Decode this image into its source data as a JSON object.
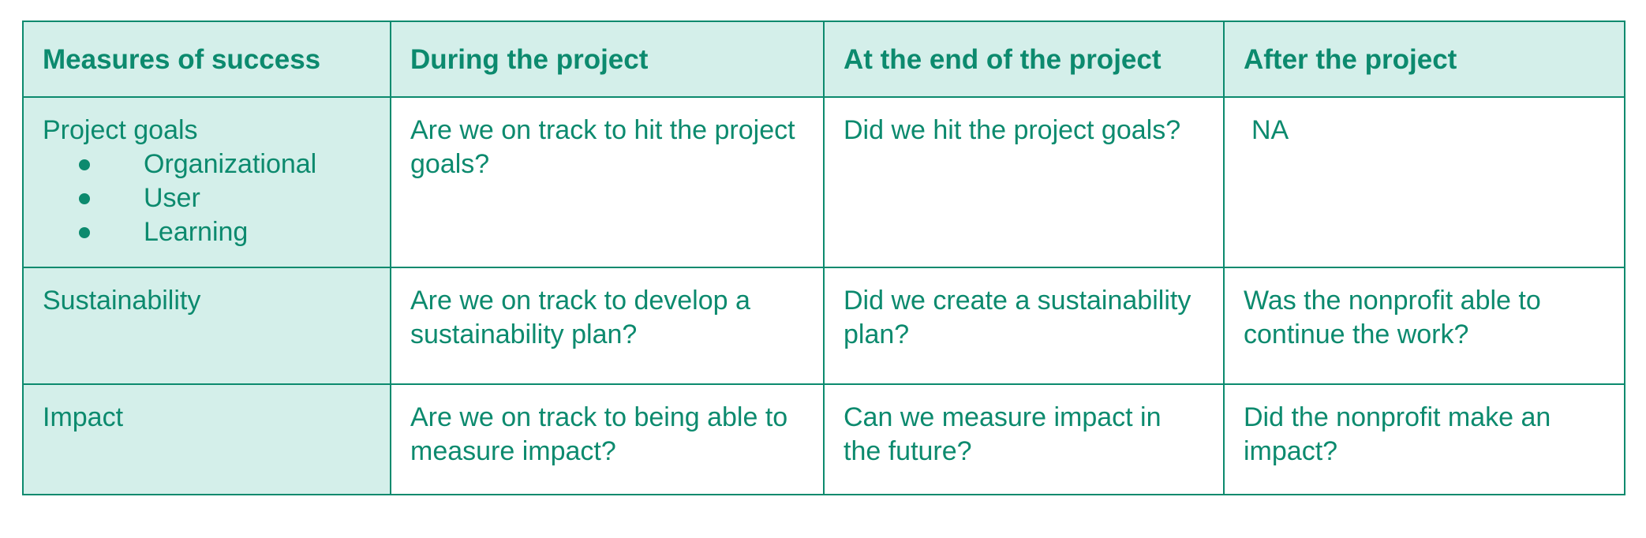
{
  "table": {
    "headers": [
      "Measures of success",
      "During the project",
      "At the end of the project",
      "After the project"
    ],
    "rows": [
      {
        "label": "Project goals",
        "sub_items": [
          "Organizational",
          "User",
          "Learning"
        ],
        "during": "Are we on track to hit the project goals?",
        "end": "Did we hit the project goals?",
        "after": "NA"
      },
      {
        "label": "Sustainability",
        "during": "Are we on track to develop a sustainability plan?",
        "end": "Did we create a sustainability plan?",
        "after": "Was the nonprofit able to continue the work?"
      },
      {
        "label": "Impact",
        "during": "Are we on track to being able to measure impact?",
        "end": "Can we measure impact in the future?",
        "after": "Did the nonprofit make an impact?"
      }
    ]
  },
  "colors": {
    "text": "#0c8a6e",
    "border": "#0c8a6e",
    "header_bg": "#d4efea"
  }
}
